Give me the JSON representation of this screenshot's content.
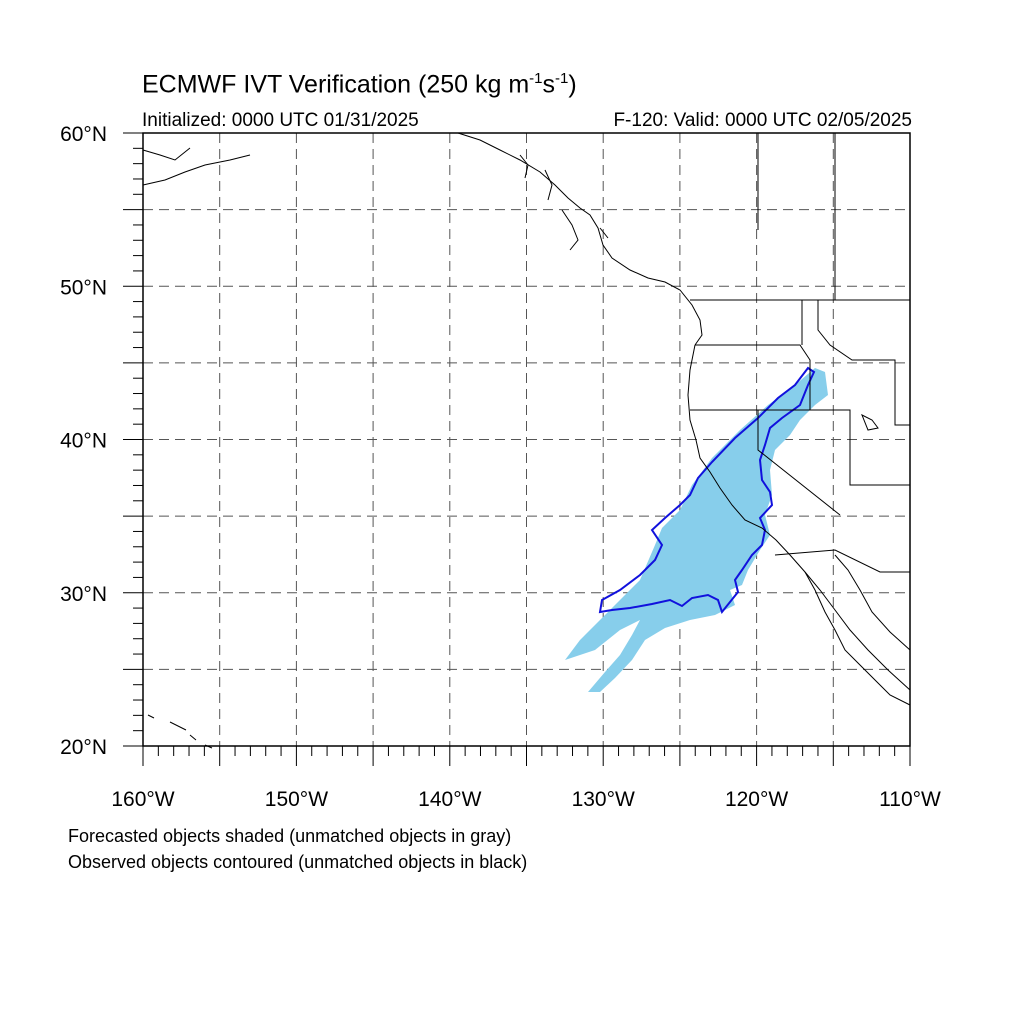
{
  "title": {
    "main": "ECMWF IVT Verification (250 kg m",
    "exp1": "-1",
    "mid": "s",
    "exp2": "-1",
    "end": ")"
  },
  "subtitle": {
    "initialized": "Initialized: 0000 UTC 01/31/2025",
    "valid": "F-120: Valid: 0000 UTC 02/05/2025"
  },
  "map": {
    "lon_range": [
      -160,
      -110
    ],
    "lat_range": [
      20,
      60
    ],
    "grid_step_deg": 5,
    "grid_style": "dashed",
    "lat_labels": [
      {
        "lat": 60,
        "text": "60°N"
      },
      {
        "lat": 50,
        "text": "50°N"
      },
      {
        "lat": 40,
        "text": "40°N"
      },
      {
        "lat": 30,
        "text": "30°N"
      },
      {
        "lat": 20,
        "text": "20°N"
      }
    ],
    "lon_labels": [
      {
        "lon": -160,
        "text": "160°W"
      },
      {
        "lon": -150,
        "text": "150°W"
      },
      {
        "lon": -140,
        "text": "140°W"
      },
      {
        "lon": -130,
        "text": "130°W"
      },
      {
        "lon": -120,
        "text": "120°W"
      },
      {
        "lon": -110,
        "text": "110°W"
      }
    ],
    "forecast_object_color": "#87CEEB",
    "observed_contour_color": "#1111DD"
  },
  "footer": {
    "line1": "Forecasted objects shaded (unmatched objects in gray)",
    "line2": "Observed objects contoured (unmatched objects in black)"
  }
}
